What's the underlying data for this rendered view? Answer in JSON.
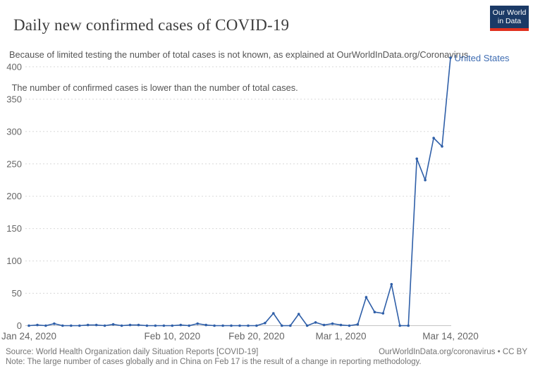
{
  "header": {
    "title": "Daily new confirmed cases of COVID-19",
    "subtitle_line1": "Because of limited testing the number of total cases is not known, as explained at OurWorldInData.org/Coronavirus",
    "subtitle_line2": " The number of confirmed cases is lower than the number of total cases."
  },
  "logo": {
    "line1": "Our World",
    "line2": "in Data",
    "bg_color": "#1b3a66",
    "stripe_color": "#e0301e"
  },
  "chart_data": {
    "type": "line",
    "title": "Daily new confirmed cases of COVID-19",
    "xlabel": "",
    "ylabel": "",
    "ylim": [
      0,
      400
    ],
    "grid": true,
    "legend_position": "end-of-line label",
    "y_ticks": [
      0,
      50,
      100,
      150,
      200,
      250,
      300,
      350,
      400
    ],
    "x_tick_labels": [
      "Jan 24, 2020",
      "Feb 10, 2020",
      "Feb 20, 2020",
      "Mar 1, 2020",
      "Mar 14, 2020"
    ],
    "x_tick_day_index": [
      0,
      17,
      27,
      37,
      50
    ],
    "series": [
      {
        "name": "United States",
        "color": "#2f5fa8",
        "dates": [
          "2020-01-24",
          "2020-01-25",
          "2020-01-26",
          "2020-01-27",
          "2020-01-28",
          "2020-01-29",
          "2020-01-30",
          "2020-01-31",
          "2020-02-01",
          "2020-02-02",
          "2020-02-03",
          "2020-02-04",
          "2020-02-05",
          "2020-02-06",
          "2020-02-07",
          "2020-02-08",
          "2020-02-09",
          "2020-02-10",
          "2020-02-11",
          "2020-02-12",
          "2020-02-13",
          "2020-02-14",
          "2020-02-15",
          "2020-02-16",
          "2020-02-17",
          "2020-02-18",
          "2020-02-19",
          "2020-02-20",
          "2020-02-21",
          "2020-02-22",
          "2020-02-23",
          "2020-02-24",
          "2020-02-25",
          "2020-02-26",
          "2020-02-27",
          "2020-02-28",
          "2020-02-29",
          "2020-03-01",
          "2020-03-02",
          "2020-03-03",
          "2020-03-04",
          "2020-03-05",
          "2020-03-06",
          "2020-03-07",
          "2020-03-08",
          "2020-03-09",
          "2020-03-10",
          "2020-03-11",
          "2020-03-12",
          "2020-03-13",
          "2020-03-14"
        ],
        "values": [
          0,
          1,
          0,
          3,
          0,
          0,
          0,
          1,
          1,
          0,
          2,
          0,
          1,
          1,
          0,
          0,
          0,
          0,
          1,
          0,
          3,
          1,
          0,
          0,
          0,
          0,
          0,
          0,
          4,
          19,
          0,
          0,
          18,
          0,
          5,
          1,
          3,
          1,
          0,
          2,
          44,
          21,
          19,
          64,
          0,
          0,
          258,
          225,
          290,
          277,
          414
        ]
      }
    ]
  },
  "colors": {
    "line": "#2f5fa8",
    "entity_label": "#3e6cb2",
    "grid": "#d9d9d9",
    "baseline": "#c4c4c4",
    "axis_text": "#666666"
  },
  "footer": {
    "source": "Source: World Health Organization daily Situation Reports [COVID-19]",
    "credit": "OurWorldInData.org/coronavirus • CC BY",
    "note": "Note: The large number of cases globally and in China on Feb 17 is the result of a change in reporting methodology."
  }
}
